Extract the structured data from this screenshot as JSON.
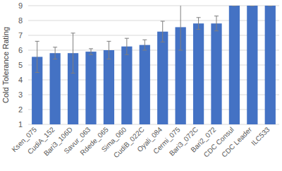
{
  "chart_data": {
    "type": "bar",
    "y_label": "Cold Tolerance Rating",
    "categories": [
      "Ksen_075",
      "CudiA_152",
      "Bari3_106D",
      "Savur_063",
      "Rdede_065",
      "Sima_060",
      "CudiB_022C",
      "Oyali_084",
      "Cermi_075",
      "Bari3_072C",
      "Bari2_072",
      "CDC Consul",
      "CDC Leader",
      "ILC533"
    ],
    "values": [
      5.55,
      5.8,
      5.8,
      5.9,
      6.0,
      6.25,
      6.35,
      7.25,
      7.55,
      7.8,
      7.8,
      9,
      9,
      9
    ],
    "errors": [
      1.05,
      0.4,
      1.35,
      0.2,
      0.6,
      0.55,
      0.35,
      0.7,
      1.55,
      0.4,
      0.5,
      0,
      0,
      0
    ],
    "color": "#4472c4",
    "ylim": [
      1,
      9
    ],
    "yticks": [
      1,
      2,
      3,
      4,
      5,
      6,
      7,
      8,
      9
    ],
    "grid": true
  }
}
